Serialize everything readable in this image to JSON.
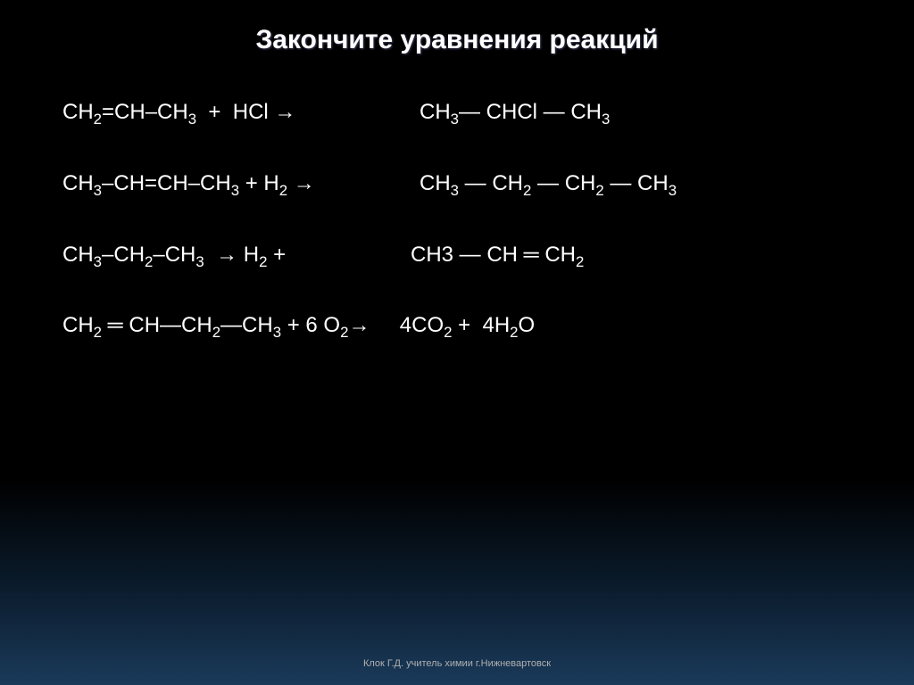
{
  "title": "Закончите уравнения реакций",
  "equations": {
    "row1": {
      "left": "CH₂=CH–CH₃ + HCl →",
      "right": "CH₃— CHCl — CH₃"
    },
    "row2": {
      "left": "CH₃–CH=CH–CH₃ + H₂ →",
      "right": "CH₃ — CH₂ — CH₂ — CH₃"
    },
    "row3": {
      "left": "CH₃–CH₂–CH₃  → H₂ +",
      "right": "CH3 — CH ═ CH₂"
    },
    "row4": {
      "left": "CH₂ ═ CH—CH₂—CH₃ + 6 O₂→",
      "right": "  4CO₂ +  4H₂O"
    }
  },
  "footer": "Клок Г.Д. учитель химии  г.Нижневартовск",
  "styling": {
    "background_gradient": [
      "#000000",
      "#000000",
      "#0a1a2a",
      "#1a3a5a"
    ],
    "title_color": "#ffffff",
    "title_fontsize": 30,
    "equation_color": "#ffffff",
    "equation_fontsize": 24,
    "footer_color": "#b0b0b0",
    "footer_fontsize": 11,
    "font_family": "Arial"
  }
}
